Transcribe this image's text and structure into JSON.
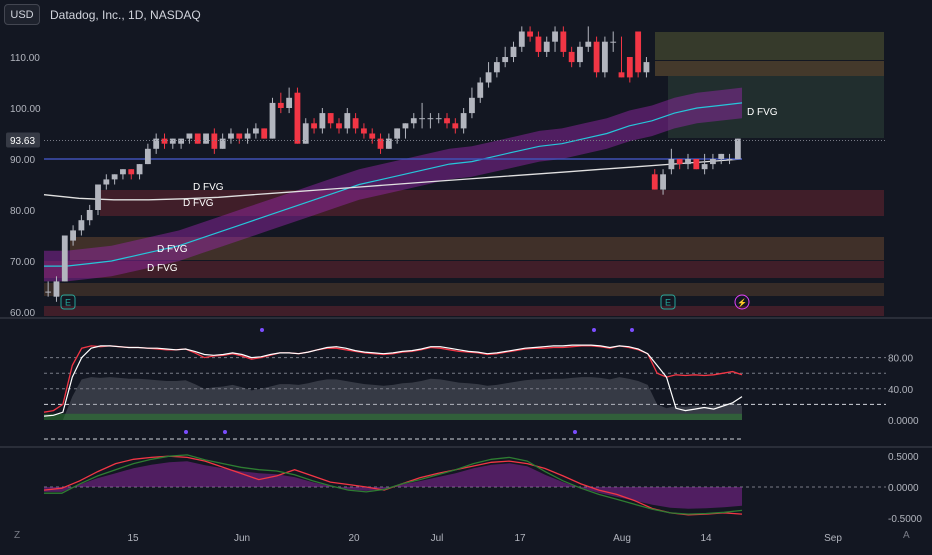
{
  "header": {
    "currency": "USD",
    "title": "Datadog, Inc., 1D, NASDAQ"
  },
  "footer": {
    "zoom_label": "Z",
    "auto_label": "A"
  },
  "markers": {
    "earnings_label": "E",
    "dividend_icon": "lightning-icon"
  },
  "colors": {
    "background": "#131722",
    "up": "#b2b5be",
    "up_strong": "#26a69a",
    "down": "#f23645",
    "purple_band": "#9c27b0",
    "teal_line": "#26c6da",
    "blue_line": "#3f51b5",
    "white_line": "#ffffff"
  },
  "chart_data": [
    {
      "type": "candlestick",
      "title": "Datadog, Inc., 1D, NASDAQ",
      "ylim": [
        60,
        120
      ],
      "y_ticks": [
        "110.00",
        "100.00",
        "90.00",
        "80.00",
        "70.00",
        "60.00"
      ],
      "last_price_label": "93.63",
      "x_ticks": [
        "15",
        "Jun",
        "20",
        "Jul",
        "17",
        "Aug",
        "14",
        "Sep"
      ],
      "ohlc": [
        [
          64,
          66,
          63,
          64
        ],
        [
          63,
          67,
          62,
          66
        ],
        [
          66,
          75,
          66,
          75
        ],
        [
          74,
          77,
          73,
          76
        ],
        [
          76,
          79,
          75,
          78
        ],
        [
          78,
          81,
          77,
          80
        ],
        [
          80,
          85,
          79,
          85
        ],
        [
          85,
          87,
          84,
          86
        ],
        [
          86,
          87,
          85,
          87
        ],
        [
          87,
          88,
          86,
          88
        ],
        [
          88,
          88,
          86,
          87
        ],
        [
          87,
          89,
          86,
          89
        ],
        [
          89,
          93,
          89,
          92
        ],
        [
          92,
          95,
          91,
          94
        ],
        [
          94,
          95,
          92,
          93
        ],
        [
          93,
          94,
          92,
          94
        ],
        [
          93,
          94,
          92,
          94
        ],
        [
          94,
          95,
          93,
          95
        ],
        [
          95,
          95,
          93,
          93
        ],
        [
          93,
          95,
          93,
          95
        ],
        [
          95,
          96,
          91,
          92
        ],
        [
          92,
          95,
          92,
          94
        ],
        [
          94,
          96,
          93,
          95
        ],
        [
          95,
          95,
          93,
          94
        ],
        [
          94,
          96,
          93,
          95
        ],
        [
          95,
          97,
          94,
          96
        ],
        [
          96,
          96,
          94,
          94
        ],
        [
          94,
          102,
          94,
          101
        ],
        [
          101,
          103,
          99,
          100
        ],
        [
          100,
          104,
          99,
          102
        ],
        [
          103,
          104,
          93,
          93
        ],
        [
          93,
          98,
          93,
          97
        ],
        [
          97,
          98,
          95,
          96
        ],
        [
          96,
          100,
          95,
          99
        ],
        [
          99,
          99,
          96,
          97
        ],
        [
          97,
          98,
          95,
          96
        ],
        [
          96,
          100,
          95,
          99
        ],
        [
          98,
          99,
          95,
          96
        ],
        [
          96,
          97,
          94,
          95
        ],
        [
          95,
          96,
          93,
          94
        ],
        [
          94,
          95,
          91,
          92
        ],
        [
          92,
          95,
          92,
          94
        ],
        [
          94,
          96,
          93,
          96
        ],
        [
          96,
          97,
          94,
          97
        ],
        [
          97,
          99,
          96,
          98
        ],
        [
          98,
          101,
          96,
          98
        ],
        [
          98,
          99,
          96,
          98
        ],
        [
          98,
          99,
          97,
          98
        ],
        [
          98,
          99,
          96,
          97
        ],
        [
          97,
          98,
          95,
          96
        ],
        [
          96,
          100,
          95,
          99
        ],
        [
          99,
          104,
          98,
          102
        ],
        [
          102,
          106,
          101,
          105
        ],
        [
          105,
          109,
          104,
          107
        ],
        [
          107,
          110,
          106,
          109
        ],
        [
          109,
          112,
          108,
          110
        ],
        [
          110,
          113,
          109,
          112
        ],
        [
          112,
          116,
          111,
          115
        ],
        [
          115,
          116,
          113,
          114
        ],
        [
          114,
          115,
          110,
          111
        ],
        [
          111,
          114,
          110,
          113
        ],
        [
          113,
          116,
          111,
          115
        ],
        [
          115,
          116,
          110,
          111
        ],
        [
          111,
          112,
          108,
          109
        ],
        [
          109,
          113,
          108,
          112
        ],
        [
          112,
          116,
          111,
          113
        ],
        [
          113,
          114,
          106,
          107
        ],
        [
          107,
          114,
          106,
          113
        ],
        [
          113,
          115,
          111,
          113
        ],
        [
          107,
          114,
          106,
          106
        ],
        [
          110,
          110,
          105,
          106
        ],
        [
          115,
          115,
          106,
          107
        ],
        [
          107,
          110,
          106,
          109
        ],
        [
          87,
          88,
          84,
          84
        ],
        [
          84,
          88,
          83,
          87
        ],
        [
          88,
          92,
          87,
          90
        ],
        [
          90,
          90,
          88,
          89
        ],
        [
          89,
          91,
          88,
          90
        ],
        [
          90,
          90,
          88,
          88
        ],
        [
          88,
          91,
          87,
          89
        ],
        [
          89,
          91,
          88,
          90
        ],
        [
          90,
          91,
          89,
          91
        ],
        [
          90,
          91,
          89,
          90
        ],
        [
          90,
          94,
          90,
          94
        ]
      ],
      "fvg_labels": [
        "D FVG",
        "D FVG",
        "D FVG",
        "D FVG",
        "D FVG"
      ],
      "series": [
        {
          "values": [
            69,
            69,
            69.5,
            70,
            71,
            72,
            73,
            74.5,
            76,
            77.5,
            79,
            80.5,
            82,
            83.5,
            85,
            86,
            87,
            88,
            89,
            89.5,
            90.5,
            91.5,
            92.5,
            93,
            94,
            95,
            96.5,
            97.5,
            99,
            100,
            100.5,
            101
          ]
        },
        {
          "values": [
            83,
            82.3,
            82,
            82,
            82.2,
            82.5,
            83,
            83.5,
            84,
            84.5,
            85,
            85.5,
            86,
            86.5,
            87,
            87.5,
            88,
            88.5,
            89,
            89.5,
            90
          ]
        },
        {
          "values": [
            90,
            90,
            90,
            90,
            90,
            90,
            90,
            90,
            90,
            90
          ]
        }
      ]
    },
    {
      "type": "line",
      "y_ticks": [
        "80.00",
        "40.00",
        "0.0000"
      ],
      "ylim": [
        0,
        100
      ],
      "series": [
        {
          "values": [
            10,
            12,
            20,
            70,
            92,
            95,
            94,
            95,
            94,
            93,
            93,
            92,
            91,
            90,
            90,
            91,
            86,
            80,
            82,
            83,
            85,
            82,
            78,
            80,
            83,
            86,
            86,
            85,
            87,
            90,
            92,
            92,
            90,
            88,
            86,
            85,
            84,
            85,
            87,
            88,
            90,
            93,
            92,
            90,
            88,
            87,
            86,
            84,
            85,
            87,
            89,
            91,
            92,
            92,
            93,
            93,
            94,
            95,
            95,
            94,
            92,
            95,
            93,
            90,
            85,
            60,
            55,
            58,
            57,
            58,
            57,
            58,
            60,
            62,
            58
          ]
        },
        {
          "values": [
            5,
            6,
            10,
            55,
            80,
            92,
            95,
            95,
            94,
            93,
            93,
            92,
            92,
            91,
            90,
            91,
            88,
            84,
            83,
            84,
            86,
            84,
            80,
            81,
            84,
            86,
            86,
            85,
            87,
            90,
            93,
            94,
            92,
            89,
            87,
            86,
            85,
            86,
            88,
            89,
            91,
            94,
            94,
            92,
            90,
            88,
            87,
            85,
            86,
            88,
            90,
            92,
            93,
            94,
            95,
            95,
            96,
            96,
            96,
            95,
            93,
            95,
            94,
            91,
            85,
            70,
            55,
            15,
            12,
            14,
            16,
            14,
            18,
            22,
            30
          ]
        }
      ]
    },
    {
      "type": "line",
      "y_ticks": [
        "0.5000",
        "0.0000",
        "-0.5000"
      ],
      "ylim": [
        -0.6,
        0.6
      ],
      "series": [
        {
          "values": [
            -0.05,
            -0.02,
            0.1,
            0.25,
            0.38,
            0.45,
            0.48,
            0.5,
            0.48,
            0.42,
            0.32,
            0.22,
            0.12,
            0.18,
            0.28,
            0.18,
            0.08,
            0.04,
            0.0,
            -0.05,
            0.05,
            0.15,
            0.22,
            0.28,
            0.34,
            0.4,
            0.42,
            0.38,
            0.3,
            0.18,
            0.05,
            -0.05,
            -0.12,
            -0.22,
            -0.35,
            -0.42,
            -0.45,
            -0.44,
            -0.42,
            -0.44
          ]
        },
        {
          "values": [
            -0.1,
            -0.1,
            0.05,
            0.18,
            0.28,
            0.38,
            0.45,
            0.5,
            0.52,
            0.44,
            0.38,
            0.32,
            0.28,
            0.26,
            0.2,
            0.1,
            0.02,
            -0.05,
            -0.08,
            -0.04,
            0.05,
            0.12,
            0.2,
            0.28,
            0.38,
            0.45,
            0.48,
            0.42,
            0.25,
            0.1,
            -0.02,
            -0.12,
            -0.2,
            -0.28,
            -0.36,
            -0.42,
            -0.44,
            -0.43,
            -0.41,
            -0.38
          ]
        }
      ]
    }
  ]
}
